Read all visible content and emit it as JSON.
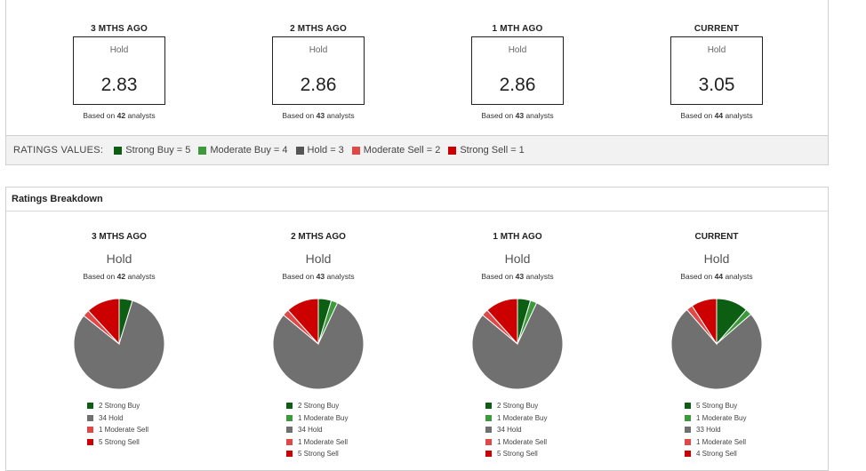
{
  "colors": {
    "strong_buy": "#0b5e12",
    "moderate_buy": "#3c9a3c",
    "hold": "#707070",
    "moderate_sell": "#e04848",
    "strong_sell": "#cc0000"
  },
  "consensus": [
    {
      "period": "3 MTHS AGO",
      "label": "Hold",
      "score": "2.83",
      "based_prefix": "Based on ",
      "count": "42",
      "based_suffix": " analysts"
    },
    {
      "period": "2 MTHS AGO",
      "label": "Hold",
      "score": "2.86",
      "based_prefix": "Based on ",
      "count": "43",
      "based_suffix": " analysts"
    },
    {
      "period": "1 MTH AGO",
      "label": "Hold",
      "score": "2.86",
      "based_prefix": "Based on ",
      "count": "43",
      "based_suffix": " analysts"
    },
    {
      "period": "CURRENT",
      "label": "Hold",
      "score": "3.05",
      "based_prefix": "Based on ",
      "count": "44",
      "based_suffix": " analysts"
    }
  ],
  "ratings_values": {
    "title": "RATINGS VALUES:",
    "items": [
      {
        "label": "Strong Buy = 5",
        "color": "#0b5e12"
      },
      {
        "label": "Moderate Buy = 4",
        "color": "#3c9a3c"
      },
      {
        "label": "Hold = 3",
        "color": "#555555"
      },
      {
        "label": "Moderate Sell = 2",
        "color": "#e04848"
      },
      {
        "label": "Strong Sell = 1",
        "color": "#cc0000"
      }
    ]
  },
  "breakdown": {
    "title": "Ratings Breakdown"
  },
  "chart_data": [
    {
      "type": "pie",
      "title": "3 MTHS AGO",
      "consensus": "Hold",
      "analysts": 42,
      "slices": [
        {
          "label": "Strong Buy",
          "value": 2
        },
        {
          "label": "Moderate Buy",
          "value": 0
        },
        {
          "label": "Hold",
          "value": 34
        },
        {
          "label": "Moderate Sell",
          "value": 1
        },
        {
          "label": "Strong Sell",
          "value": 5
        }
      ],
      "legend": [
        "2 Strong Buy",
        "34 Hold",
        "1 Moderate Sell",
        "5 Strong Sell"
      ]
    },
    {
      "type": "pie",
      "title": "2 MTHS AGO",
      "consensus": "Hold",
      "analysts": 43,
      "slices": [
        {
          "label": "Strong Buy",
          "value": 2
        },
        {
          "label": "Moderate Buy",
          "value": 1
        },
        {
          "label": "Hold",
          "value": 34
        },
        {
          "label": "Moderate Sell",
          "value": 1
        },
        {
          "label": "Strong Sell",
          "value": 5
        }
      ],
      "legend": [
        "2 Strong Buy",
        "1 Moderate Buy",
        "34 Hold",
        "1 Moderate Sell",
        "5 Strong Sell"
      ]
    },
    {
      "type": "pie",
      "title": "1 MTH AGO",
      "consensus": "Hold",
      "analysts": 43,
      "slices": [
        {
          "label": "Strong Buy",
          "value": 2
        },
        {
          "label": "Moderate Buy",
          "value": 1
        },
        {
          "label": "Hold",
          "value": 34
        },
        {
          "label": "Moderate Sell",
          "value": 1
        },
        {
          "label": "Strong Sell",
          "value": 5
        }
      ],
      "legend": [
        "2 Strong Buy",
        "1 Moderate Buy",
        "34 Hold",
        "1 Moderate Sell",
        "5 Strong Sell"
      ]
    },
    {
      "type": "pie",
      "title": "CURRENT",
      "consensus": "Hold",
      "analysts": 44,
      "slices": [
        {
          "label": "Strong Buy",
          "value": 5
        },
        {
          "label": "Moderate Buy",
          "value": 1
        },
        {
          "label": "Hold",
          "value": 33
        },
        {
          "label": "Moderate Sell",
          "value": 1
        },
        {
          "label": "Strong Sell",
          "value": 4
        }
      ],
      "legend": [
        "5 Strong Buy",
        "1 Moderate Buy",
        "33 Hold",
        "1 Moderate Sell",
        "4 Strong Sell"
      ]
    }
  ]
}
